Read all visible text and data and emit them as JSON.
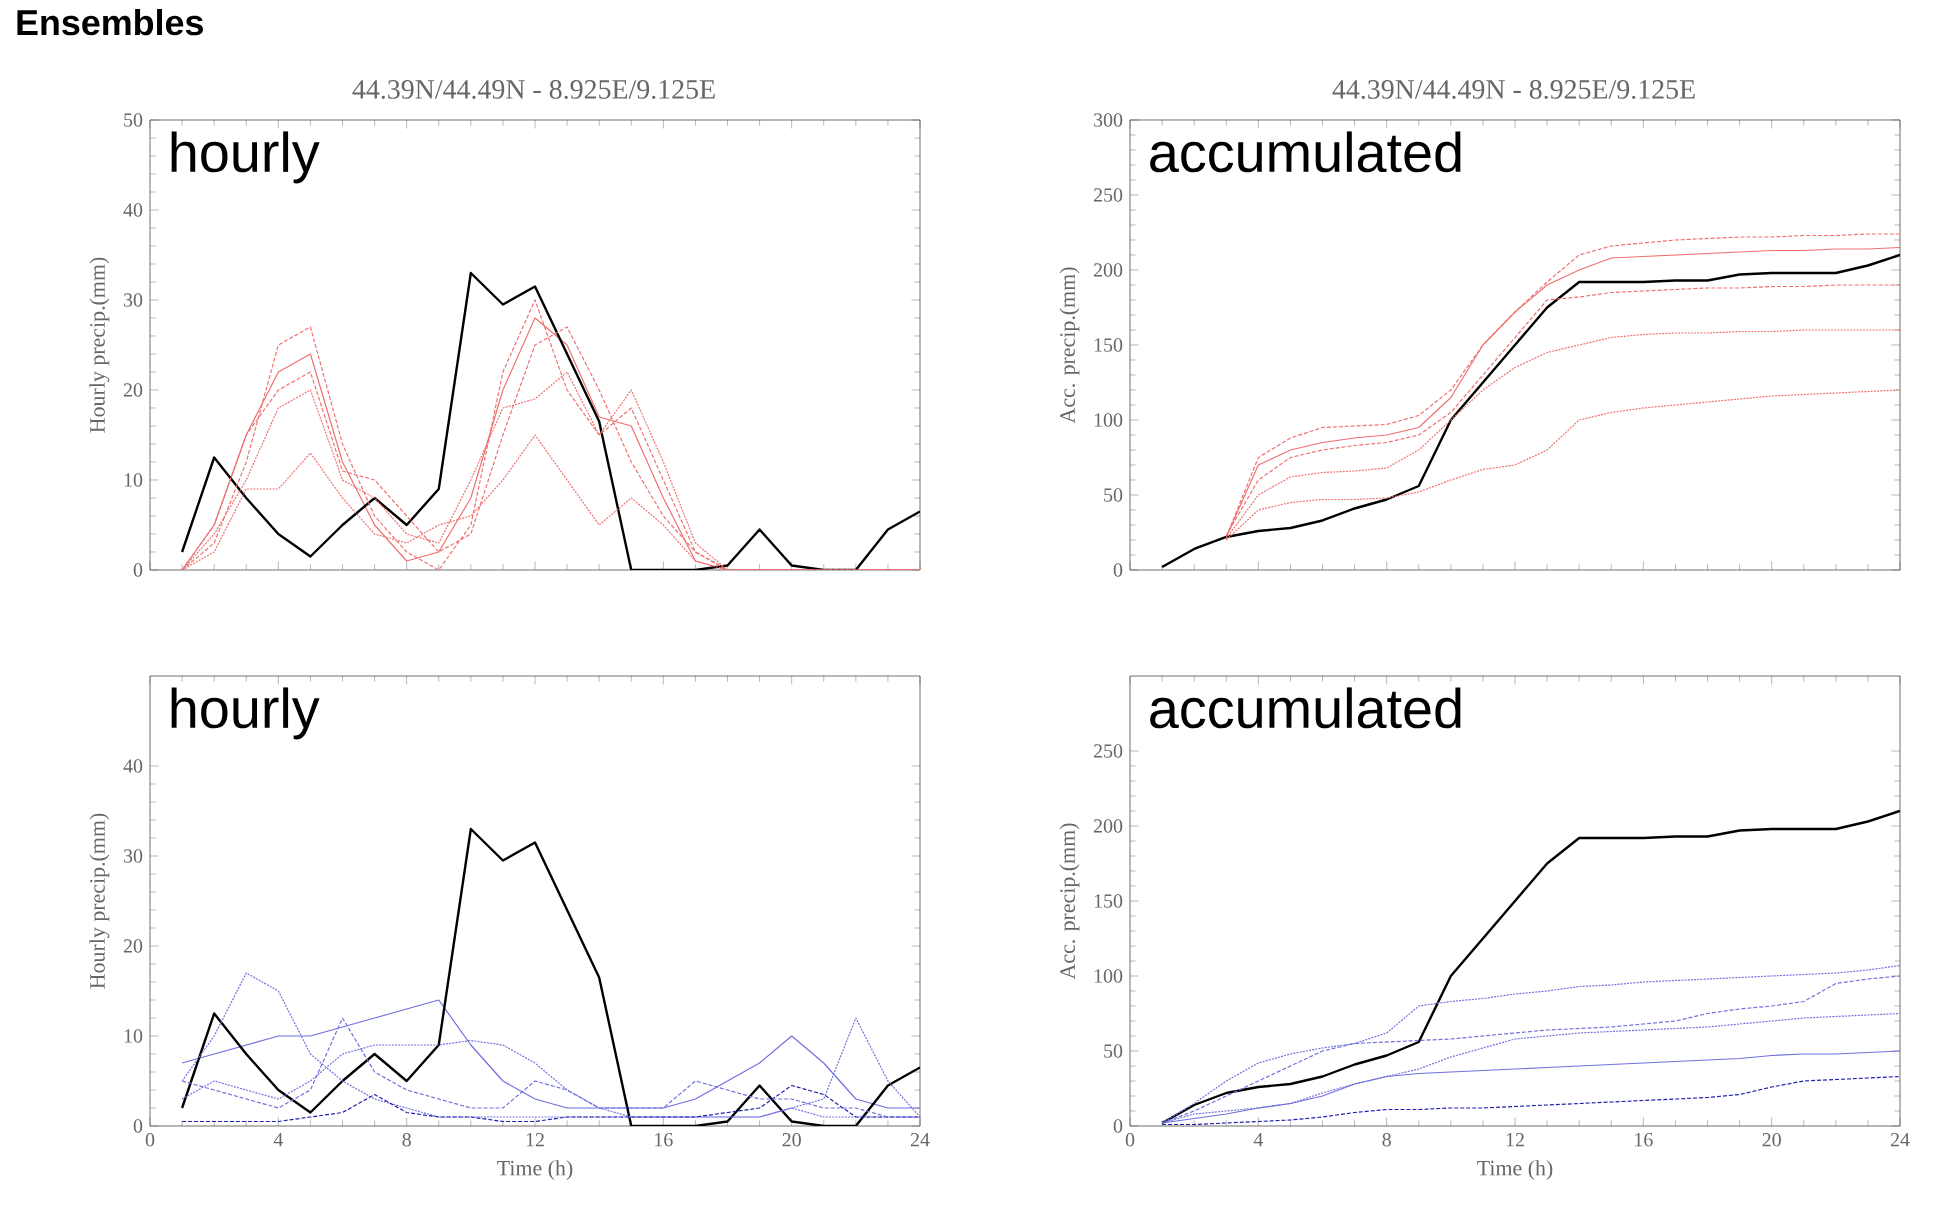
{
  "chart_data": [
    {
      "type": "line",
      "title": "Ensembles",
      "subtitle": "44.39N/44.49N - 8.925E/9.125E",
      "ylabel": "Hourly precip.(mm)",
      "annotations": [
        "hourly"
      ],
      "x": [
        1,
        2,
        3,
        4,
        5,
        6,
        7,
        8,
        9,
        10,
        11,
        12,
        13,
        14,
        15,
        16,
        17,
        18,
        19,
        20,
        21,
        22,
        23,
        24
      ],
      "xlim": [
        0,
        24
      ],
      "ylim": [
        0,
        50
      ],
      "xticks": [
        0,
        4,
        8,
        12,
        16,
        20,
        24
      ],
      "yticks": [
        0,
        10,
        20,
        30,
        40,
        50
      ],
      "tick_labels": "y",
      "grid": false,
      "marker": "none",
      "series": [
        {
          "color": "#f07070",
          "line_style": "dashed",
          "values": [
            0,
            3,
            12,
            25,
            27,
            14,
            6,
            2,
            0,
            5,
            22,
            30,
            20,
            15,
            18,
            10,
            2,
            0,
            0,
            0,
            0,
            0,
            0,
            0
          ]
        },
        {
          "color": "#f07070",
          "line_style": "solid",
          "values": [
            0,
            5,
            15,
            22,
            24,
            12,
            5,
            1,
            2,
            8,
            20,
            28,
            25,
            17,
            16,
            8,
            1,
            0,
            0,
            0,
            0,
            0,
            0,
            0
          ]
        },
        {
          "color": "#f07070",
          "line_style": "dotted",
          "values": [
            0,
            4,
            10,
            18,
            20,
            10,
            8,
            4,
            3,
            10,
            18,
            19,
            22,
            15,
            20,
            12,
            3,
            0,
            0,
            0,
            0,
            0,
            0,
            0
          ]
        },
        {
          "color": "#f07070",
          "line_style": "dotted",
          "values": [
            0,
            2,
            9,
            9,
            13,
            8,
            4,
            3,
            5,
            6,
            10,
            15,
            10,
            5,
            8,
            5,
            1,
            0,
            0,
            0,
            0,
            0,
            0,
            0
          ]
        },
        {
          "color": "#f07070",
          "line_style": "dashed",
          "values": [
            0,
            5,
            15,
            20,
            22,
            11,
            10,
            6,
            2,
            4,
            15,
            25,
            27,
            20,
            12,
            6,
            2,
            0,
            0,
            0,
            0,
            0,
            0,
            0
          ]
        },
        {
          "color": "#000000",
          "line_style": "solid",
          "values": [
            2,
            12.5,
            8,
            4,
            1.5,
            5,
            8,
            5,
            9,
            33,
            29.5,
            31.5,
            24,
            16.5,
            0,
            0,
            0,
            0.5,
            4.5,
            0.5,
            0,
            0,
            4.5,
            6.5
          ]
        }
      ]
    },
    {
      "type": "line",
      "subtitle": "44.39N/44.49N - 8.925E/9.125E",
      "ylabel": "Acc. precip.(mm)",
      "annotations": [
        "accumulated"
      ],
      "x": [
        1,
        2,
        3,
        4,
        5,
        6,
        7,
        8,
        9,
        10,
        11,
        12,
        13,
        14,
        15,
        16,
        17,
        18,
        19,
        20,
        21,
        22,
        23,
        24
      ],
      "xlim": [
        0,
        24
      ],
      "ylim": [
        0,
        300
      ],
      "xticks": [
        0,
        4,
        8,
        12,
        16,
        20,
        24
      ],
      "yticks": [
        0,
        50,
        100,
        150,
        200,
        250,
        300
      ],
      "tick_labels": "y",
      "grid": false,
      "marker": "none",
      "series": [
        {
          "color": "#f07070",
          "line_style": "dashed",
          "values": [
            null,
            null,
            22,
            75,
            88,
            95,
            96,
            97,
            103,
            120,
            150,
            172,
            192,
            210,
            216,
            218,
            220,
            221,
            222,
            222,
            223,
            223,
            224,
            224
          ]
        },
        {
          "color": "#f07070",
          "line_style": "solid",
          "values": [
            null,
            null,
            22,
            70,
            80,
            85,
            88,
            90,
            95,
            115,
            150,
            172,
            190,
            200,
            208,
            209,
            210,
            211,
            212,
            213,
            213,
            214,
            214,
            215
          ]
        },
        {
          "color": "#f07070",
          "line_style": "dotted",
          "values": [
            null,
            null,
            21,
            50,
            62,
            65,
            66,
            68,
            80,
            100,
            120,
            135,
            145,
            150,
            155,
            157,
            158,
            158,
            159,
            159,
            160,
            160,
            160,
            160
          ]
        },
        {
          "color": "#f07070",
          "line_style": "dotted",
          "values": [
            null,
            null,
            20,
            40,
            45,
            47,
            47,
            48,
            52,
            60,
            67,
            70,
            80,
            100,
            105,
            108,
            110,
            112,
            114,
            116,
            117,
            118,
            119,
            120
          ]
        },
        {
          "color": "#f07070",
          "line_style": "dashed",
          "values": [
            null,
            null,
            23,
            60,
            75,
            80,
            83,
            85,
            90,
            105,
            130,
            155,
            180,
            182,
            185,
            186,
            187,
            188,
            188,
            189,
            189,
            190,
            190,
            190
          ]
        },
        {
          "color": "#000000",
          "line_style": "solid",
          "values": [
            2,
            14,
            22,
            26,
            28,
            33,
            41,
            47,
            56,
            100,
            125,
            150,
            175,
            192,
            192,
            192,
            193,
            193,
            197,
            198,
            198,
            198,
            203,
            210
          ]
        }
      ]
    },
    {
      "type": "line",
      "xlabel": "Time (h)",
      "ylabel": "Hourly precip.(mm)",
      "annotations": [
        "hourly"
      ],
      "x": [
        1,
        2,
        3,
        4,
        5,
        6,
        7,
        8,
        9,
        10,
        11,
        12,
        13,
        14,
        15,
        16,
        17,
        18,
        19,
        20,
        21,
        22,
        23,
        24
      ],
      "xlim": [
        0,
        24
      ],
      "ylim": [
        0,
        50
      ],
      "xticks": [
        0,
        4,
        8,
        12,
        16,
        20,
        24
      ],
      "yticks": [
        0,
        10,
        20,
        30,
        40
      ],
      "grid": false,
      "marker": "none",
      "series": [
        {
          "color": "#7070e0",
          "line_style": "dotted",
          "values": [
            5,
            10,
            17,
            15,
            8,
            5,
            3,
            2,
            1,
            1,
            1,
            1,
            1,
            1,
            1,
            1,
            1,
            1,
            1,
            2,
            1,
            1,
            1,
            1
          ]
        },
        {
          "color": "#7070e0",
          "line_style": "solid",
          "values": [
            7,
            8,
            9,
            10,
            10,
            11,
            12,
            13,
            14,
            9,
            5,
            3,
            2,
            2,
            2,
            2,
            3,
            5,
            7,
            10,
            7,
            3,
            2,
            2
          ]
        },
        {
          "color": "#7070e0",
          "line_style": "dotted",
          "values": [
            3,
            5,
            4,
            3,
            5,
            8,
            9,
            9,
            9,
            9.5,
            9,
            7,
            4,
            2,
            1,
            1,
            1,
            1,
            1,
            2,
            3,
            12,
            5,
            1
          ]
        },
        {
          "color": "#2020b0",
          "line_style": "dashed",
          "values": [
            0.5,
            0.5,
            0.5,
            0.5,
            1,
            1.5,
            3.5,
            1.5,
            1,
            1,
            0.5,
            0.5,
            1,
            1,
            1,
            1,
            1,
            1.5,
            2,
            4.5,
            3.5,
            1,
            1,
            1
          ]
        },
        {
          "color": "#7070e0",
          "line_style": "dashed",
          "values": [
            5,
            4,
            3,
            2,
            4,
            12,
            6,
            4,
            3,
            2,
            2,
            5,
            4,
            2,
            2,
            2,
            5,
            4,
            3,
            3,
            2,
            2,
            1,
            1
          ]
        },
        {
          "color": "#000000",
          "line_style": "solid",
          "values": [
            2,
            12.5,
            8,
            4,
            1.5,
            5,
            8,
            5,
            9,
            33,
            29.5,
            31.5,
            24,
            16.5,
            0,
            0,
            0,
            0.5,
            4.5,
            0.5,
            0,
            0,
            4.5,
            6.5
          ]
        }
      ]
    },
    {
      "type": "line",
      "xlabel": "Time (h)",
      "ylabel": "Acc. precip.(mm)",
      "annotations": [
        "accumulated"
      ],
      "x": [
        1,
        2,
        3,
        4,
        5,
        6,
        7,
        8,
        9,
        10,
        11,
        12,
        13,
        14,
        15,
        16,
        17,
        18,
        19,
        20,
        21,
        22,
        23,
        24
      ],
      "xlim": [
        0,
        24
      ],
      "ylim": [
        0,
        300
      ],
      "xticks": [
        0,
        4,
        8,
        12,
        16,
        20,
        24
      ],
      "yticks": [
        0,
        50,
        100,
        150,
        200,
        250
      ],
      "grid": false,
      "marker": "none",
      "series": [
        {
          "color": "#7070e0",
          "line_style": "dotted",
          "values": [
            2,
            15,
            30,
            42,
            48,
            52,
            55,
            62,
            80,
            83,
            85,
            88,
            90,
            93,
            94,
            96,
            97,
            98,
            99,
            100,
            101,
            102,
            104,
            107
          ]
        },
        {
          "color": "#7070e0",
          "line_style": "dashed",
          "values": [
            2,
            10,
            20,
            30,
            40,
            50,
            55,
            56,
            57,
            58,
            60,
            62,
            64,
            65,
            66,
            68,
            70,
            75,
            78,
            80,
            83,
            95,
            98,
            100
          ]
        },
        {
          "color": "#7070e0",
          "line_style": "dotted",
          "values": [
            2,
            8,
            10,
            12,
            15,
            22,
            28,
            33,
            38,
            46,
            52,
            58,
            60,
            62,
            63,
            64,
            65,
            66,
            68,
            70,
            72,
            73,
            74,
            75
          ]
        },
        {
          "color": "#2020b0",
          "line_style": "dashed",
          "values": [
            1,
            1,
            2,
            3,
            4,
            6,
            9,
            11,
            11,
            12,
            12,
            13,
            14,
            15,
            16,
            17,
            18,
            19,
            21,
            26,
            30,
            31,
            32,
            33
          ]
        },
        {
          "color": "#7070e0",
          "line_style": "solid",
          "values": [
            2,
            5,
            8,
            12,
            15,
            20,
            28,
            33,
            35,
            36,
            37,
            38,
            39,
            40,
            41,
            42,
            43,
            44,
            45,
            47,
            48,
            48,
            49,
            50
          ]
        },
        {
          "color": "#000000",
          "line_style": "solid",
          "values": [
            2,
            14,
            22,
            26,
            28,
            33,
            41,
            47,
            56,
            100,
            125,
            150,
            175,
            192,
            192,
            192,
            193,
            193,
            197,
            198,
            198,
            198,
            203,
            210
          ]
        }
      ]
    }
  ]
}
